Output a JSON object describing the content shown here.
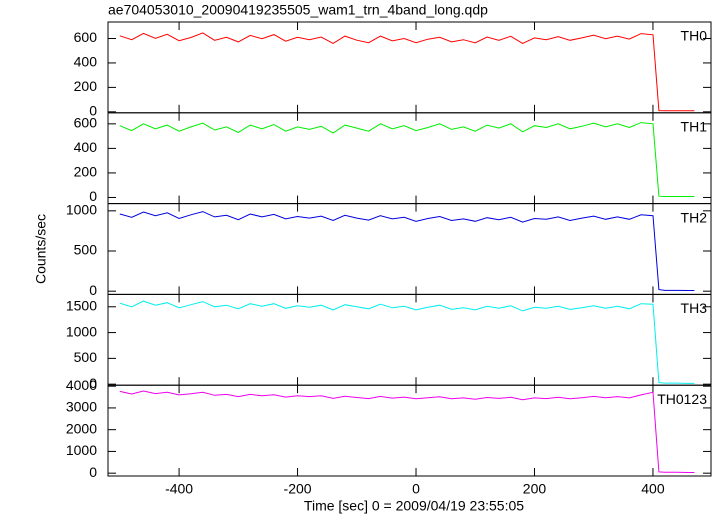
{
  "chart_data": [
    {
      "type": "line",
      "title": "ae704053010_20090419235505_wam1_trn_4band_long.qdp",
      "label": "TH0",
      "color": "#ff0000",
      "x": [
        -500,
        -480,
        -460,
        -440,
        -420,
        -400,
        -380,
        -360,
        -340,
        -320,
        -300,
        -280,
        -260,
        -240,
        -220,
        -200,
        -180,
        -160,
        -140,
        -120,
        -100,
        -80,
        -60,
        -40,
        -20,
        0,
        20,
        40,
        60,
        80,
        100,
        120,
        140,
        160,
        180,
        200,
        220,
        240,
        260,
        280,
        300,
        320,
        340,
        360,
        380,
        400,
        410,
        420,
        440,
        460,
        470
      ],
      "values": [
        622,
        590,
        642,
        602,
        634,
        582,
        608,
        646,
        585,
        610,
        572,
        625,
        598,
        632,
        578,
        610,
        590,
        612,
        560,
        620,
        586,
        566,
        620,
        580,
        600,
        566,
        594,
        610,
        572,
        590,
        565,
        612,
        585,
        618,
        560,
        605,
        590,
        615,
        585,
        605,
        628,
        598,
        620,
        595,
        640,
        630,
        10,
        8,
        8,
        8,
        8
      ],
      "xlim": [
        -520,
        498
      ],
      "xticks": [
        -400,
        -200,
        0,
        200,
        400
      ],
      "ylim": [
        -8,
        735
      ],
      "yticks": [
        0,
        200,
        400,
        600
      ]
    },
    {
      "type": "line",
      "label": "TH1",
      "color": "#00ee00",
      "x": [
        -500,
        -480,
        -460,
        -440,
        -420,
        -400,
        -380,
        -360,
        -340,
        -320,
        -300,
        -280,
        -260,
        -240,
        -220,
        -200,
        -180,
        -160,
        -140,
        -120,
        -100,
        -80,
        -60,
        -40,
        -20,
        0,
        20,
        40,
        60,
        80,
        100,
        120,
        140,
        160,
        180,
        200,
        220,
        240,
        260,
        280,
        300,
        320,
        340,
        360,
        380,
        400,
        410,
        420,
        440,
        460,
        470
      ],
      "values": [
        585,
        545,
        600,
        560,
        590,
        540,
        575,
        605,
        550,
        575,
        530,
        590,
        560,
        595,
        540,
        575,
        555,
        580,
        525,
        590,
        565,
        540,
        600,
        560,
        585,
        545,
        570,
        600,
        555,
        575,
        540,
        590,
        565,
        600,
        535,
        585,
        570,
        600,
        560,
        580,
        605,
        575,
        600,
        570,
        610,
        600,
        10,
        8,
        8,
        8,
        8
      ],
      "xlim": [
        -520,
        498
      ],
      "xticks": [
        -400,
        -200,
        0,
        200,
        400
      ],
      "ylim": [
        -50,
        690
      ],
      "yticks": [
        0,
        200,
        400,
        600
      ]
    },
    {
      "type": "line",
      "label": "TH2",
      "color": "#0000dd",
      "ylabel": "Counts/sec",
      "x": [
        -500,
        -480,
        -460,
        -440,
        -420,
        -400,
        -380,
        -360,
        -340,
        -320,
        -300,
        -280,
        -260,
        -240,
        -220,
        -200,
        -180,
        -160,
        -140,
        -120,
        -100,
        -80,
        -60,
        -40,
        -20,
        0,
        20,
        40,
        60,
        80,
        100,
        120,
        140,
        160,
        180,
        200,
        220,
        240,
        260,
        280,
        300,
        320,
        340,
        360,
        380,
        400,
        410,
        420,
        440,
        460,
        470
      ],
      "values": [
        960,
        920,
        985,
        940,
        975,
        905,
        950,
        990,
        925,
        945,
        890,
        960,
        925,
        955,
        900,
        930,
        910,
        935,
        880,
        945,
        910,
        885,
        940,
        900,
        920,
        870,
        905,
        930,
        880,
        900,
        870,
        915,
        890,
        920,
        860,
        905,
        895,
        925,
        880,
        910,
        935,
        895,
        925,
        895,
        950,
        940,
        20,
        10,
        10,
        8,
        8
      ],
      "xlim": [
        -520,
        498
      ],
      "xticks": [
        -400,
        -200,
        0,
        200,
        400
      ],
      "ylim": [
        -40,
        1090
      ],
      "yticks": [
        0,
        500,
        1000
      ]
    },
    {
      "type": "line",
      "label": "TH3",
      "color": "#00eeee",
      "x": [
        -500,
        -480,
        -460,
        -440,
        -420,
        -400,
        -380,
        -360,
        -340,
        -320,
        -300,
        -280,
        -260,
        -240,
        -220,
        -200,
        -180,
        -160,
        -140,
        -120,
        -100,
        -80,
        -60,
        -40,
        -20,
        0,
        20,
        40,
        60,
        80,
        100,
        120,
        140,
        160,
        180,
        200,
        220,
        240,
        260,
        280,
        300,
        320,
        340,
        360,
        380,
        400,
        410,
        420,
        440,
        460,
        470
      ],
      "values": [
        1570,
        1500,
        1610,
        1530,
        1580,
        1480,
        1540,
        1600,
        1500,
        1530,
        1460,
        1560,
        1510,
        1560,
        1470,
        1520,
        1490,
        1530,
        1440,
        1540,
        1500,
        1460,
        1550,
        1480,
        1510,
        1440,
        1490,
        1530,
        1450,
        1480,
        1440,
        1510,
        1470,
        1520,
        1420,
        1490,
        1470,
        1510,
        1450,
        1480,
        1520,
        1470,
        1510,
        1460,
        1560,
        1550,
        30,
        20,
        20,
        15,
        15
      ],
      "xlim": [
        -520,
        498
      ],
      "xticks": [
        -400,
        -200,
        0,
        200,
        400
      ],
      "ylim": [
        -20,
        1740
      ],
      "yticks": [
        0,
        500,
        1000,
        1500
      ]
    },
    {
      "type": "line",
      "label": "TH0123",
      "color": "#ee00ee",
      "xlabel": "Time [sec] 0 = 2009/04/19 23:55:05",
      "x": [
        -500,
        -480,
        -460,
        -440,
        -420,
        -400,
        -380,
        -360,
        -340,
        -320,
        -300,
        -280,
        -260,
        -240,
        -220,
        -200,
        -180,
        -160,
        -140,
        -120,
        -100,
        -80,
        -60,
        -40,
        -20,
        0,
        20,
        40,
        60,
        80,
        100,
        120,
        140,
        160,
        180,
        200,
        220,
        240,
        260,
        280,
        300,
        320,
        340,
        360,
        380,
        400,
        410,
        420,
        440,
        460,
        470
      ],
      "values": [
        3760,
        3640,
        3780,
        3660,
        3720,
        3600,
        3650,
        3720,
        3580,
        3620,
        3520,
        3620,
        3560,
        3610,
        3500,
        3560,
        3520,
        3560,
        3440,
        3540,
        3480,
        3430,
        3530,
        3450,
        3500,
        3420,
        3470,
        3510,
        3420,
        3460,
        3400,
        3480,
        3440,
        3490,
        3380,
        3460,
        3430,
        3490,
        3420,
        3470,
        3530,
        3470,
        3520,
        3460,
        3600,
        3720,
        60,
        40,
        40,
        30,
        30
      ],
      "xlim": [
        -520,
        498
      ],
      "xticks": [
        -400,
        -200,
        0,
        200,
        400
      ],
      "ylim": [
        -130,
        4045
      ],
      "yticks": [
        0,
        1000,
        2000,
        3000,
        4000
      ]
    }
  ]
}
